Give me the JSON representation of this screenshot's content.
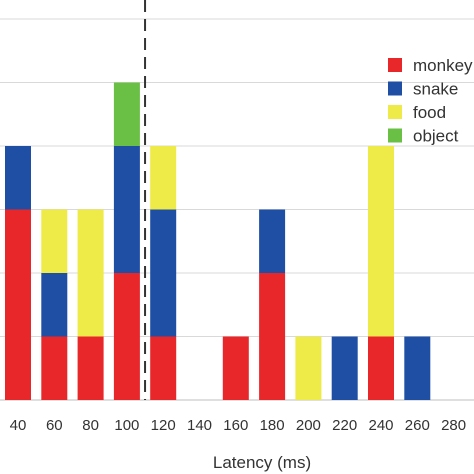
{
  "chart_data": {
    "type": "bar",
    "stacked": true,
    "title": "",
    "xlabel": "Latency (ms)",
    "ylabel": "",
    "ylim": [
      0,
      6.5
    ],
    "grid": "horizontal",
    "legend_position": "top-right",
    "x_ticks": [
      "40",
      "60",
      "80",
      "100",
      "120",
      "140",
      "160",
      "180",
      "200",
      "220",
      "240",
      "260",
      "280"
    ],
    "reference_line": {
      "x": 110,
      "style": "dashed"
    },
    "series": [
      {
        "name": "monkey",
        "color": "#e8272a",
        "values": [
          3,
          1,
          1,
          2,
          1,
          0,
          1,
          2,
          0,
          0,
          1,
          0,
          0
        ]
      },
      {
        "name": "snake",
        "color": "#1f4fa5",
        "values": [
          1,
          1,
          0,
          2,
          2,
          0,
          0,
          1,
          0,
          1,
          0,
          1,
          0
        ]
      },
      {
        "name": "food",
        "color": "#eeea47",
        "values": [
          0,
          1,
          2,
          0,
          1,
          0,
          0,
          0,
          1,
          0,
          3,
          0,
          0
        ]
      },
      {
        "name": "object",
        "color": "#6abf45",
        "values": [
          0,
          0,
          0,
          1,
          0,
          0,
          0,
          0,
          0,
          0,
          0,
          0,
          0
        ]
      }
    ]
  }
}
